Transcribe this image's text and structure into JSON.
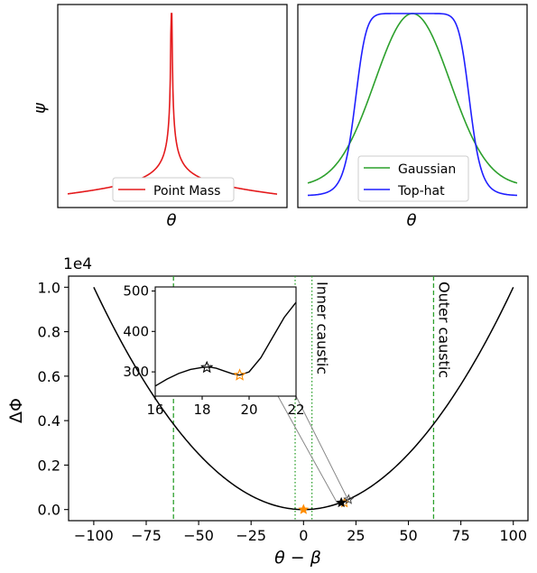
{
  "chart_data": [
    {
      "type": "line",
      "panel": "top-left",
      "xlabel": "θ",
      "ylabel": "ψ",
      "x_ticks_shown": false,
      "y_ticks_shown": false,
      "legend_placement": "bottom-center",
      "series": [
        {
          "name": "Point Mass",
          "color": "#e41a1c",
          "shape": "cusp",
          "peak": 1.0
        }
      ]
    },
    {
      "type": "line",
      "panel": "top-right",
      "xlabel": "θ",
      "ylabel": "",
      "x_ticks_shown": false,
      "y_ticks_shown": false,
      "legend_placement": "bottom-center",
      "series": [
        {
          "name": "Gaussian",
          "color": "#2ca02c",
          "shape": "gaussian",
          "peak": 1.0
        },
        {
          "name": "Top-hat",
          "color": "#1f1fff",
          "shape": "top-hat",
          "peak": 1.0
        }
      ]
    },
    {
      "type": "line",
      "panel": "bottom-main",
      "xlabel": "θ − β",
      "ylabel": "ΔΦ",
      "y_offset_label": "1e4",
      "xlim": [
        -112,
        107
      ],
      "ylim": [
        -0.05,
        1.05
      ],
      "x_ticks": [
        -100,
        -75,
        -50,
        -25,
        0,
        25,
        50,
        75,
        100
      ],
      "x_tick_labels": [
        "−100",
        "−75",
        "−50",
        "−25",
        "0",
        "25",
        "50",
        "75",
        "100"
      ],
      "y_ticks": [
        0.0,
        0.2,
        0.4,
        0.6,
        0.8,
        1.0
      ],
      "y_tick_labels": [
        "0.0",
        "0.2",
        "0.4",
        "0.6",
        "0.8",
        "1.0"
      ],
      "series": [
        {
          "name": "",
          "color": "#000000",
          "x": [
            -100,
            -75,
            -50,
            -25,
            0,
            25,
            50,
            75,
            100
          ],
          "y": [
            1.0,
            0.5625,
            0.25,
            0.0625,
            0.0,
            0.0625,
            0.25,
            0.5625,
            1.0
          ]
        }
      ],
      "vertical_lines": [
        {
          "x": -62,
          "style": "dashed",
          "color": "#2ca02c"
        },
        {
          "x": -4,
          "style": "dotted",
          "color": "#2ca02c"
        },
        {
          "x": 4,
          "style": "dotted",
          "color": "#2ca02c"
        },
        {
          "x": 62,
          "style": "dashed",
          "color": "#2ca02c"
        }
      ],
      "annotations": [
        {
          "text": "Inner caustic",
          "color": "#2ca02c",
          "x": 4
        },
        {
          "text": "Outer caustic",
          "color": "#2ca02c",
          "x": 62
        }
      ],
      "markers": [
        {
          "x": 0,
          "y": 0.0,
          "symbol": "star",
          "color": "#ff8c00",
          "filled": true
        },
        {
          "x": 19.5,
          "y": 0.03,
          "symbol": "star",
          "color": "#ff8c00",
          "filled": false
        },
        {
          "x": 18,
          "y": 0.031,
          "symbol": "star",
          "color": "#000000",
          "filled": true
        },
        {
          "x": 21.5,
          "y": 0.045,
          "symbol": "star",
          "color": "#444444",
          "filled": false
        }
      ]
    },
    {
      "type": "line",
      "panel": "inset",
      "xlim": [
        16,
        22
      ],
      "ylim": [
        240,
        510
      ],
      "x_ticks": [
        16,
        18,
        20,
        22
      ],
      "x_tick_labels": [
        "16",
        "18",
        "20",
        "22"
      ],
      "y_ticks": [
        300,
        400,
        500
      ],
      "y_tick_labels": [
        "300",
        "400",
        "500"
      ],
      "series": [
        {
          "name": "",
          "color": "#000000",
          "x": [
            16.0,
            16.5,
            17.0,
            17.5,
            18.0,
            18.3,
            18.6,
            19.0,
            19.3,
            19.6,
            20.0,
            20.5,
            21.0,
            21.5,
            22.0
          ],
          "y": [
            265,
            282,
            296,
            306,
            311,
            312,
            309,
            301,
            295,
            292,
            300,
            335,
            385,
            435,
            472
          ]
        }
      ],
      "markers": [
        {
          "x": 18.2,
          "y": 311,
          "symbol": "star",
          "color": "#000000",
          "filled": false
        },
        {
          "x": 19.6,
          "y": 292,
          "symbol": "star",
          "color": "#ff8c00",
          "filled": false
        }
      ]
    }
  ]
}
